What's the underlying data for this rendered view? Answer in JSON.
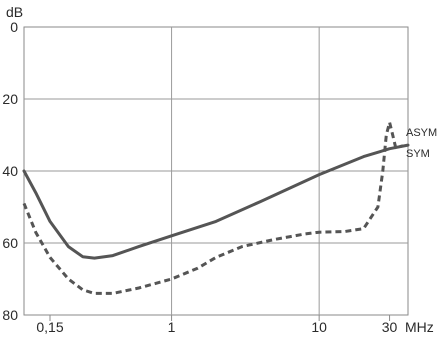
{
  "chart_data": {
    "type": "line",
    "title": "",
    "ylabel": "dB",
    "xlabel": "MHz",
    "x_scale": "log",
    "y_inverted": true,
    "xlim": [
      0.1,
      40
    ],
    "ylim": [
      0,
      80
    ],
    "x_ticks": [
      {
        "value": 0.15,
        "label": "0,15"
      },
      {
        "value": 1,
        "label": "1"
      },
      {
        "value": 10,
        "label": "10"
      },
      {
        "value": 30,
        "label": "30"
      }
    ],
    "y_ticks": [
      {
        "value": 0,
        "label": "0"
      },
      {
        "value": 20,
        "label": "20"
      },
      {
        "value": 40,
        "label": "40"
      },
      {
        "value": 60,
        "label": "60"
      },
      {
        "value": 80,
        "label": "80"
      }
    ],
    "grid": true,
    "series": [
      {
        "name": "SYM",
        "style": "solid",
        "color": "#555555",
        "points": [
          [
            0.1,
            40
          ],
          [
            0.12,
            46
          ],
          [
            0.15,
            54
          ],
          [
            0.2,
            61
          ],
          [
            0.25,
            63.8
          ],
          [
            0.3,
            64.2
          ],
          [
            0.4,
            63.5
          ],
          [
            0.6,
            61
          ],
          [
            1,
            58
          ],
          [
            2,
            54
          ],
          [
            4,
            48.5
          ],
          [
            10,
            41
          ],
          [
            20,
            36
          ],
          [
            30,
            33.8
          ],
          [
            40,
            32.8
          ]
        ]
      },
      {
        "name": "ASYM",
        "style": "dashed",
        "color": "#555555",
        "points": [
          [
            0.1,
            49
          ],
          [
            0.12,
            57
          ],
          [
            0.15,
            64
          ],
          [
            0.2,
            70
          ],
          [
            0.25,
            73
          ],
          [
            0.3,
            74
          ],
          [
            0.4,
            74
          ],
          [
            0.6,
            72.5
          ],
          [
            1,
            70
          ],
          [
            1.5,
            67
          ],
          [
            2,
            64
          ],
          [
            3,
            61
          ],
          [
            5,
            59
          ],
          [
            8,
            57.5
          ],
          [
            10,
            57
          ],
          [
            15,
            56.8
          ],
          [
            20,
            56
          ],
          [
            25,
            50
          ],
          [
            27,
            40
          ],
          [
            28.5,
            30
          ],
          [
            30,
            26.5
          ],
          [
            31.5,
            30
          ],
          [
            33,
            33.5
          ],
          [
            37,
            33
          ]
        ]
      }
    ]
  }
}
